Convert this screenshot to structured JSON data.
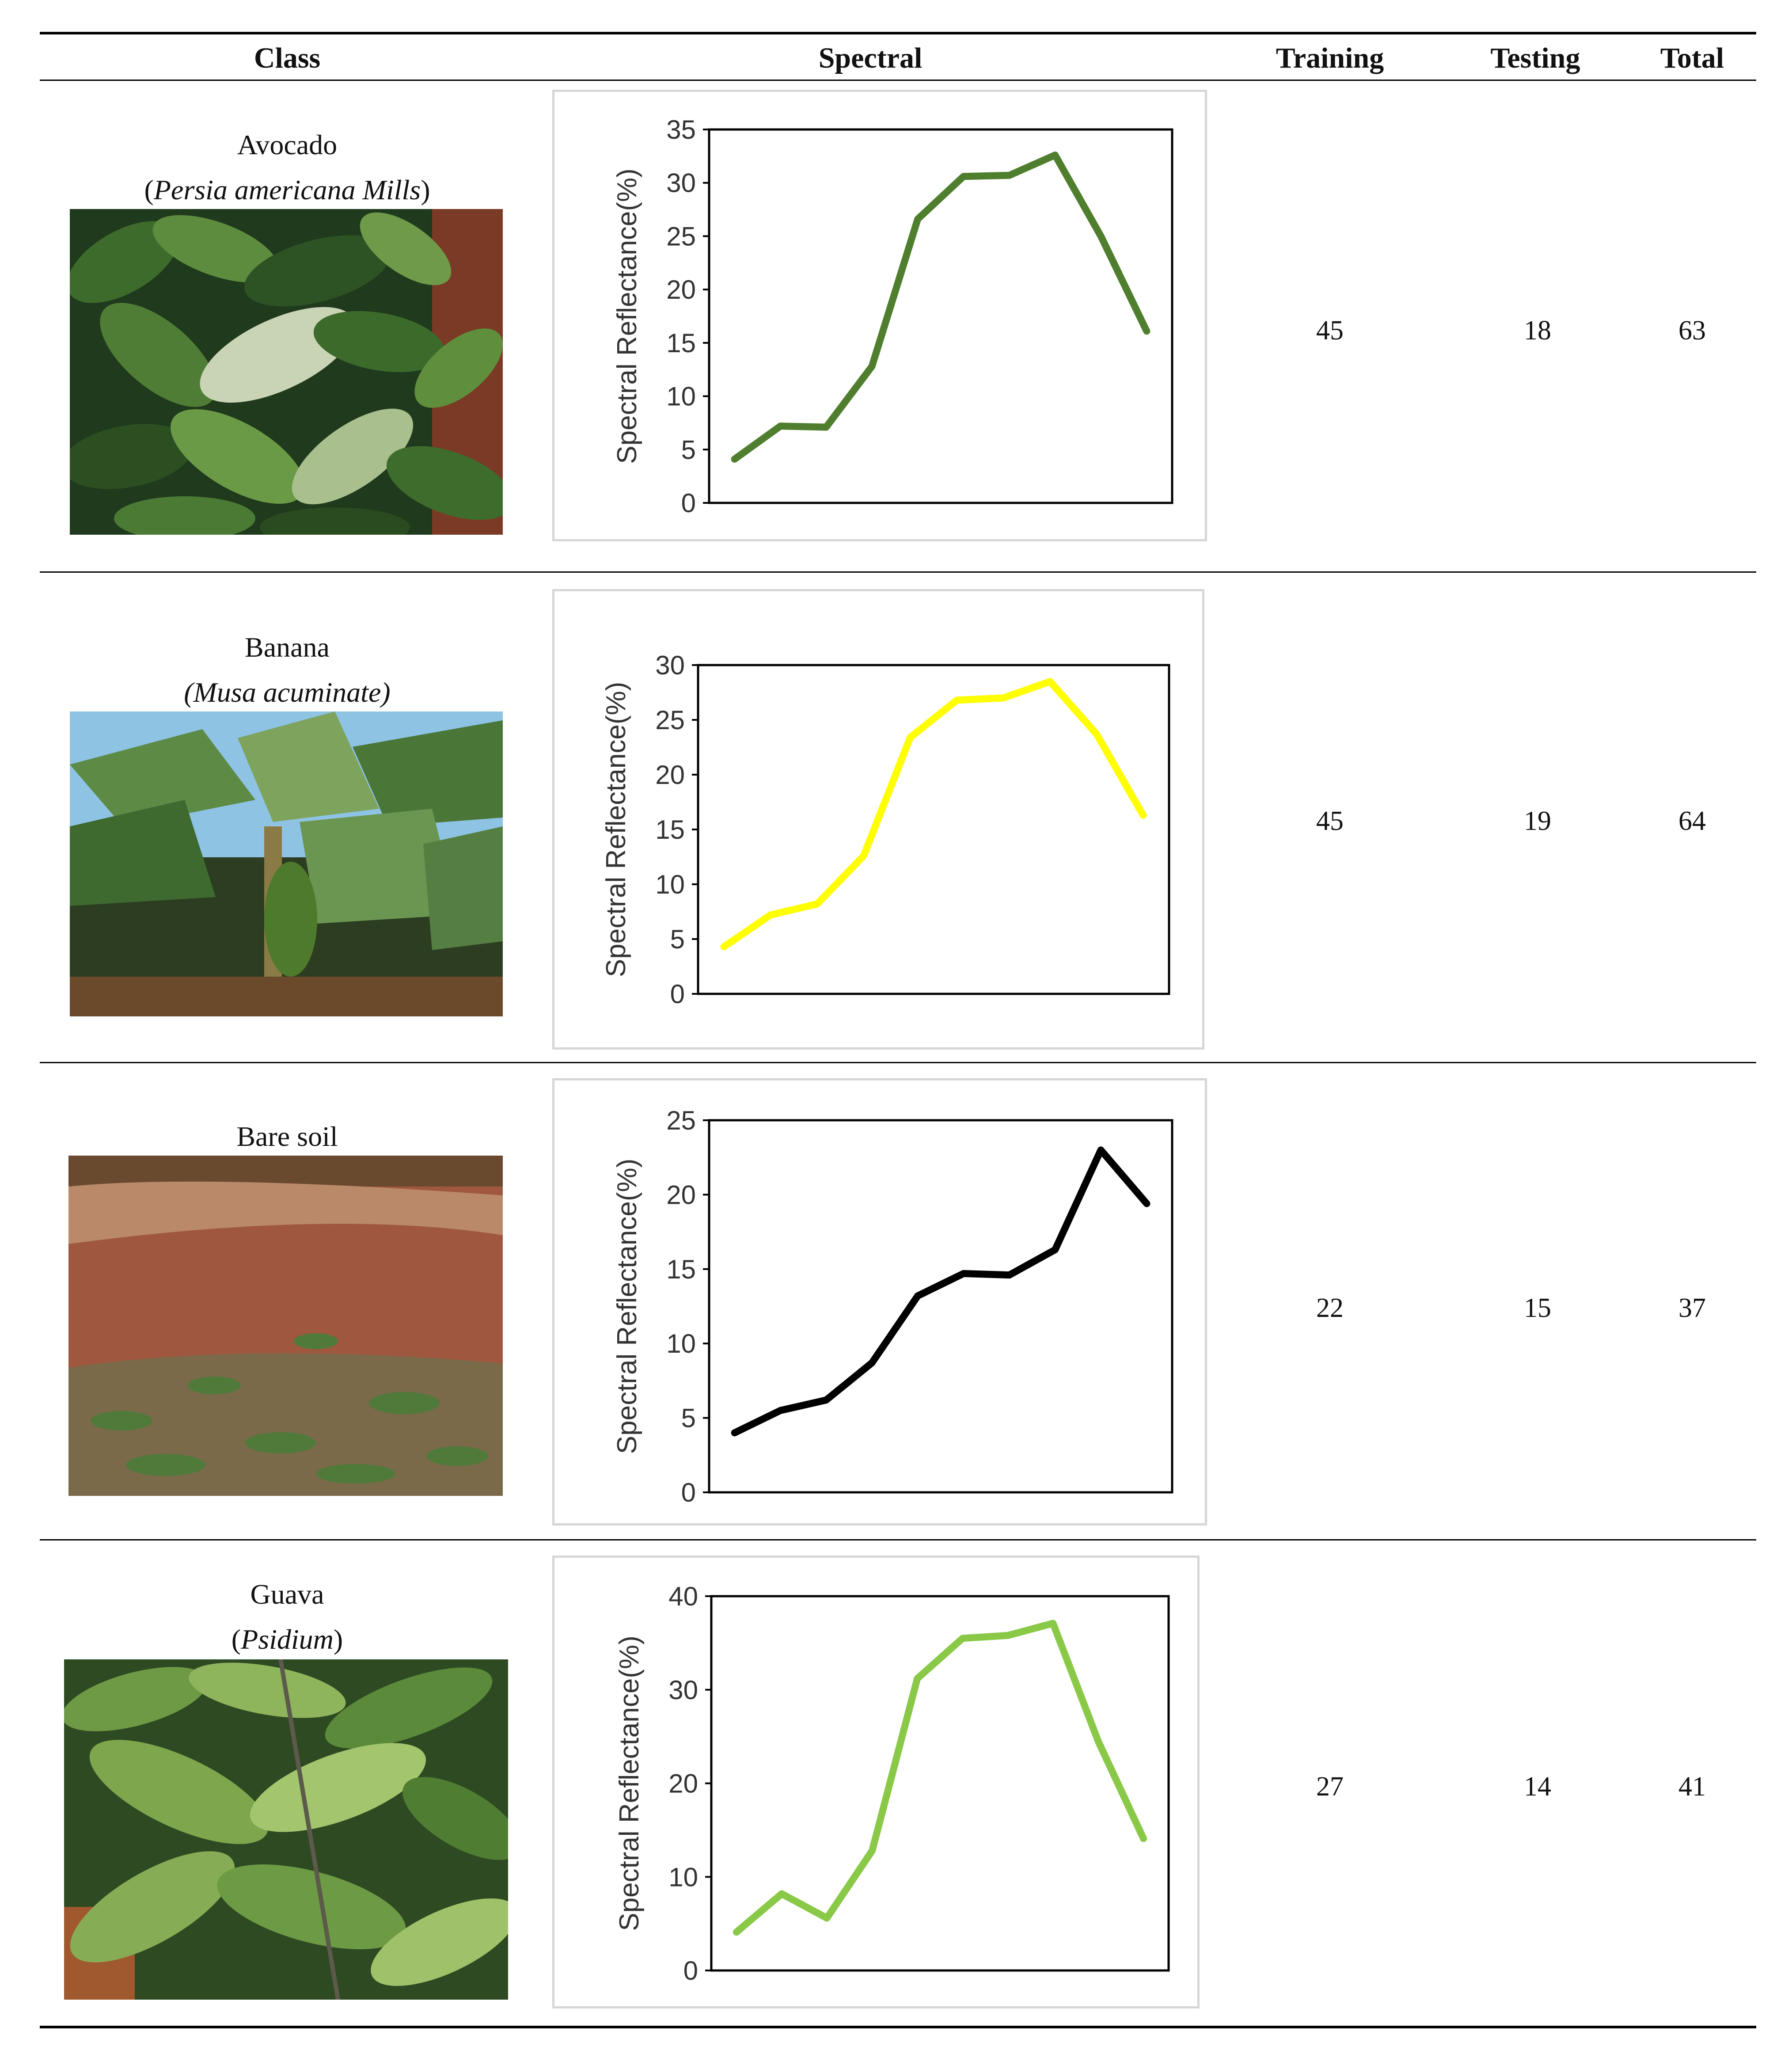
{
  "table": {
    "headers": {
      "class": "Class",
      "spectral": "Spectral",
      "training": "Training",
      "testing": "Testing",
      "total": "Total"
    },
    "rows": [
      {
        "name": "Avocado",
        "latin": "Persia americana Mills",
        "latin_prefix": "(",
        "latin_suffix": ")",
        "training": "45",
        "testing": "18",
        "total": "63",
        "photo_desc": "avocado-foliage"
      },
      {
        "name": "Banana",
        "latin": "(Musa acuminate)",
        "latin_prefix": "",
        "latin_suffix": "",
        "training": "45",
        "testing": "19",
        "total": "64",
        "photo_desc": "banana-plant"
      },
      {
        "name": "Bare soil",
        "latin": "",
        "latin_prefix": "",
        "latin_suffix": "",
        "training": "22",
        "testing": "15",
        "total": "37",
        "photo_desc": "bare-soil"
      },
      {
        "name": "Guava",
        "latin": "Psidium",
        "latin_prefix": "(",
        "latin_suffix": ")",
        "training": "27",
        "testing": "14",
        "total": "41",
        "photo_desc": "guava-foliage"
      }
    ]
  },
  "chart_data": [
    {
      "type": "line",
      "ylabel": "Spectral Reflectance(%)",
      "ylim": [
        0,
        35
      ],
      "yticks": [
        0,
        5,
        10,
        15,
        20,
        25,
        30,
        35
      ],
      "color": "#4f7f2e",
      "values": [
        4.1,
        7.2,
        7.1,
        12.8,
        26.6,
        30.6,
        30.7,
        32.6,
        25.0,
        16.1
      ]
    },
    {
      "type": "line",
      "ylabel": "Spectral Reflectance(%)",
      "ylim": [
        0,
        30
      ],
      "yticks": [
        0,
        5,
        10,
        15,
        20,
        25,
        30
      ],
      "color": "#ffff00",
      "values": [
        4.3,
        7.2,
        8.2,
        12.6,
        23.4,
        26.8,
        27.0,
        28.5,
        23.7,
        16.3
      ]
    },
    {
      "type": "line",
      "ylabel": "Spectral Reflectance(%)",
      "ylim": [
        0,
        25
      ],
      "yticks": [
        0,
        5,
        10,
        15,
        20,
        25
      ],
      "color": "#000000",
      "values": [
        4.0,
        5.5,
        6.2,
        8.7,
        13.2,
        14.7,
        14.6,
        16.3,
        23.0,
        19.4
      ]
    },
    {
      "type": "line",
      "ylabel": "Spectral Reflectance(%)",
      "ylim": [
        0,
        40
      ],
      "yticks": [
        0,
        10,
        20,
        30,
        40
      ],
      "color": "#8ac948",
      "values": [
        4.1,
        8.2,
        5.6,
        12.8,
        31.2,
        35.5,
        35.8,
        37.1,
        24.5,
        14.1
      ]
    }
  ]
}
